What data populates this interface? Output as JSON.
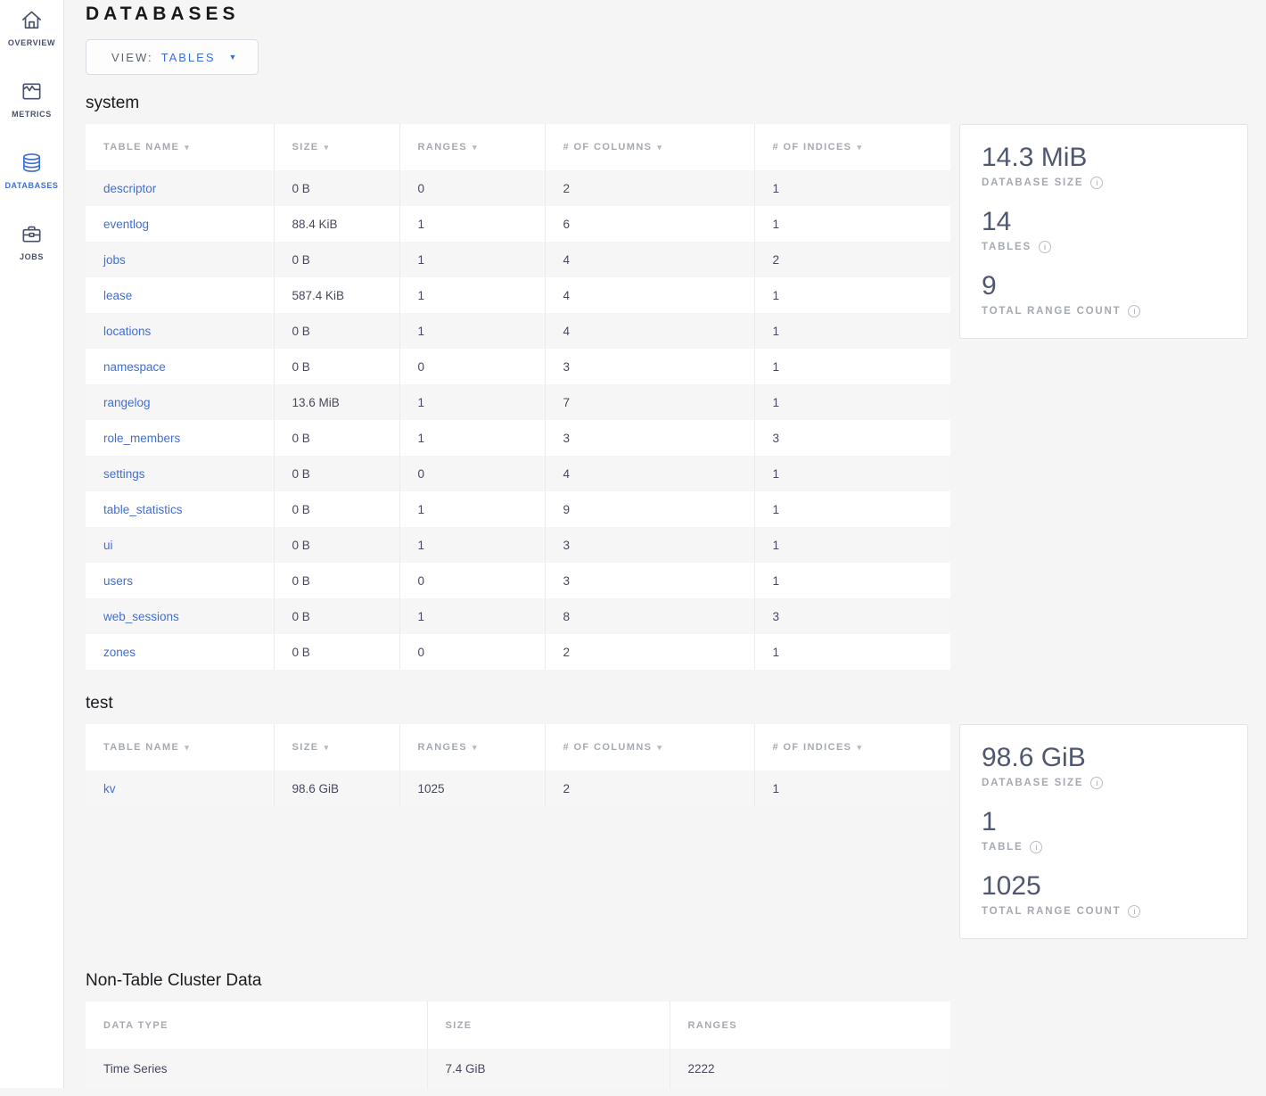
{
  "colors": {
    "accent_blue": "#3e6fd9",
    "sidebar_icon_grey": "#475066",
    "stat_value_slate": "#4f5870",
    "page_background": "#f5f5f6"
  },
  "icons": {
    "caret_down": "▼",
    "sort_arrow": "▾",
    "info": "i"
  },
  "sidebar": {
    "items": [
      {
        "label": "OVERVIEW",
        "icon": "home-icon",
        "active": false
      },
      {
        "label": "METRICS",
        "icon": "metrics-icon",
        "active": false
      },
      {
        "label": "DATABASES",
        "icon": "databases-icon",
        "active": true
      },
      {
        "label": "JOBS",
        "icon": "jobs-icon",
        "active": false
      }
    ]
  },
  "header": {
    "title": "DATABASES",
    "view_label": "VIEW:",
    "view_value": "TABLES"
  },
  "databases": [
    {
      "name": "system",
      "sortable": true,
      "link_first_col": true,
      "columns": [
        "TABLE NAME",
        "SIZE",
        "RANGES",
        "# OF COLUMNS",
        "# OF INDICES"
      ],
      "rows": [
        [
          "descriptor",
          "0 B",
          "0",
          "2",
          "1"
        ],
        [
          "eventlog",
          "88.4 KiB",
          "1",
          "6",
          "1"
        ],
        [
          "jobs",
          "0 B",
          "1",
          "4",
          "2"
        ],
        [
          "lease",
          "587.4 KiB",
          "1",
          "4",
          "1"
        ],
        [
          "locations",
          "0 B",
          "1",
          "4",
          "1"
        ],
        [
          "namespace",
          "0 B",
          "0",
          "3",
          "1"
        ],
        [
          "rangelog",
          "13.6 MiB",
          "1",
          "7",
          "1"
        ],
        [
          "role_members",
          "0 B",
          "1",
          "3",
          "3"
        ],
        [
          "settings",
          "0 B",
          "0",
          "4",
          "1"
        ],
        [
          "table_statistics",
          "0 B",
          "1",
          "9",
          "1"
        ],
        [
          "ui",
          "0 B",
          "1",
          "3",
          "1"
        ],
        [
          "users",
          "0 B",
          "0",
          "3",
          "1"
        ],
        [
          "web_sessions",
          "0 B",
          "1",
          "8",
          "3"
        ],
        [
          "zones",
          "0 B",
          "0",
          "2",
          "1"
        ]
      ],
      "summary": [
        {
          "value": "14.3 MiB",
          "label": "DATABASE SIZE"
        },
        {
          "value": "14",
          "label": "TABLES"
        },
        {
          "value": "9",
          "label": "TOTAL RANGE COUNT"
        }
      ]
    },
    {
      "name": "test",
      "sortable": true,
      "link_first_col": true,
      "columns": [
        "TABLE NAME",
        "SIZE",
        "RANGES",
        "# OF COLUMNS",
        "# OF INDICES"
      ],
      "rows": [
        [
          "kv",
          "98.6 GiB",
          "1025",
          "2",
          "1"
        ]
      ],
      "summary": [
        {
          "value": "98.6 GiB",
          "label": "DATABASE SIZE"
        },
        {
          "value": "1",
          "label": "TABLE"
        },
        {
          "value": "1025",
          "label": "TOTAL RANGE COUNT"
        }
      ]
    }
  ],
  "non_table": {
    "title": "Non-Table Cluster Data",
    "sortable": false,
    "link_first_col": false,
    "columns": [
      "DATA TYPE",
      "SIZE",
      "RANGES"
    ],
    "rows": [
      [
        "Time Series",
        "7.4 GiB",
        "2222"
      ]
    ]
  }
}
